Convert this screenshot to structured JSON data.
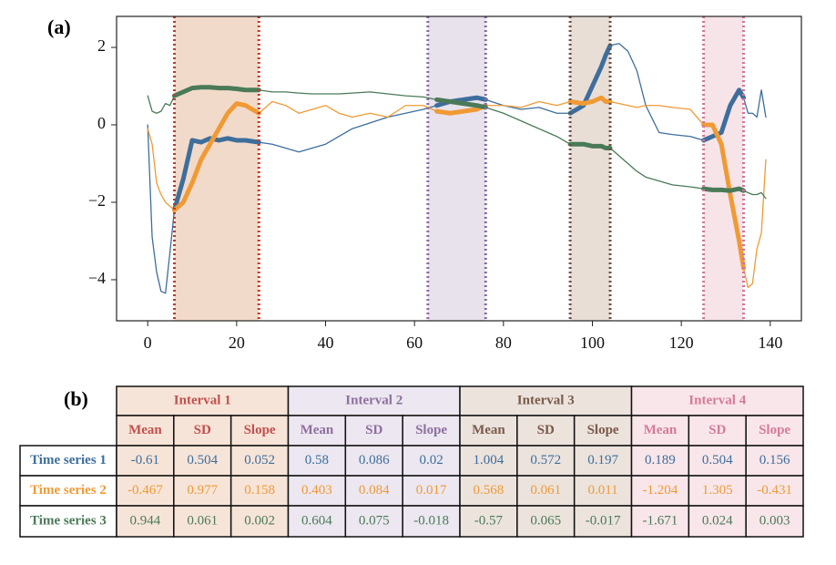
{
  "chart_data": {
    "type": "line",
    "panel_label": "(a)",
    "x": [
      0,
      1,
      2,
      3,
      4,
      5,
      6,
      8,
      10,
      12,
      14,
      16,
      18,
      20,
      22,
      25,
      28,
      31,
      34,
      37,
      40,
      43,
      46,
      50,
      54,
      58,
      62,
      65,
      68,
      71,
      74,
      76,
      80,
      84,
      88,
      92,
      95,
      98,
      100,
      102,
      103,
      104,
      106,
      108,
      110,
      112,
      115,
      118,
      122,
      125,
      127,
      129,
      131,
      133,
      134,
      135,
      136,
      137,
      138,
      139
    ],
    "series": [
      {
        "name": "Time series 1",
        "color": "#3d6e9c",
        "values": [
          0,
          -2.9,
          -3.8,
          -4.3,
          -4.35,
          -3.3,
          -2.2,
          -1.4,
          -0.4,
          -0.45,
          -0.35,
          -0.4,
          -0.35,
          -0.4,
          -0.4,
          -0.45,
          -0.5,
          -0.6,
          -0.7,
          -0.6,
          -0.5,
          -0.3,
          -0.1,
          0.05,
          0.2,
          0.3,
          0.4,
          0.5,
          0.6,
          0.65,
          0.7,
          0.65,
          0.5,
          0.4,
          0.45,
          0.3,
          0.3,
          0.5,
          1.0,
          1.5,
          1.8,
          2.05,
          2.1,
          1.9,
          1.4,
          0.5,
          -0.2,
          -0.25,
          -0.3,
          -0.4,
          -0.3,
          -0.2,
          0.5,
          0.9,
          0.7,
          0.3,
          0.3,
          0.2,
          0.9,
          0.2
        ]
      },
      {
        "name": "Time series 2",
        "color": "#f09a35",
        "values": [
          -0.1,
          -0.5,
          -1.5,
          -1.8,
          -2.0,
          -2.1,
          -2.2,
          -2.0,
          -1.5,
          -0.9,
          -0.5,
          -0.1,
          0.3,
          0.55,
          0.5,
          0.3,
          0.6,
          0.5,
          0.3,
          0.4,
          0.5,
          0.3,
          0.2,
          0.3,
          0.2,
          0.5,
          0.5,
          0.35,
          0.3,
          0.35,
          0.4,
          0.5,
          0.5,
          0.45,
          0.6,
          0.5,
          0.6,
          0.55,
          0.6,
          0.7,
          0.6,
          0.6,
          0.55,
          0.5,
          0.45,
          0.5,
          0.5,
          0.45,
          0.4,
          0.0,
          0.0,
          -0.5,
          -1.8,
          -3.0,
          -3.7,
          -4.2,
          -4.1,
          -3.2,
          -2.8,
          -0.9
        ]
      },
      {
        "name": "Time series 3",
        "color": "#4a7a58",
        "values": [
          0.75,
          0.35,
          0.3,
          0.35,
          0.55,
          0.5,
          0.75,
          0.85,
          0.95,
          0.97,
          0.97,
          0.95,
          0.95,
          0.93,
          0.9,
          0.9,
          0.85,
          0.85,
          0.82,
          0.8,
          0.8,
          0.8,
          0.82,
          0.85,
          0.8,
          0.75,
          0.72,
          0.65,
          0.6,
          0.55,
          0.5,
          0.45,
          0.3,
          0.1,
          -0.1,
          -0.3,
          -0.5,
          -0.5,
          -0.55,
          -0.55,
          -0.6,
          -0.6,
          -0.8,
          -1.0,
          -1.2,
          -1.35,
          -1.45,
          -1.55,
          -1.6,
          -1.65,
          -1.68,
          -1.68,
          -1.7,
          -1.65,
          -1.7,
          -1.75,
          -1.8,
          -1.8,
          -1.75,
          -1.9
        ]
      }
    ],
    "intervals": [
      {
        "start": 6,
        "end": 25,
        "color": "#c0392b",
        "fill": "#f1d6c4"
      },
      {
        "start": 63,
        "end": 76,
        "color": "#8b6a9c",
        "fill": "#e6dfea"
      },
      {
        "start": 95,
        "end": 104,
        "color": "#6e5040",
        "fill": "#e6dad2"
      },
      {
        "start": 125,
        "end": 134,
        "color": "#d0759a",
        "fill": "#f6e1e6"
      }
    ],
    "xlim": [
      -7,
      147
    ],
    "ylim": [
      -5.06,
      2.8
    ],
    "xticks": [
      0,
      20,
      40,
      60,
      80,
      100,
      120,
      140
    ],
    "yticks": [
      {
        "value": -4,
        "label": "−4"
      },
      {
        "value": -2,
        "label": "−2"
      },
      0,
      2
    ],
    "grid": false
  },
  "table": {
    "panel_label": "(b)",
    "intervals": [
      {
        "name": "Interval 1",
        "color": "#c0504d",
        "fill": "#f7e4d8"
      },
      {
        "name": "Interval 2",
        "color": "#8e6fa0",
        "fill": "#ece7f0"
      },
      {
        "name": "Interval 3",
        "color": "#7a5a4a",
        "fill": "#ece3dd"
      },
      {
        "name": "Interval 4",
        "color": "#d67a9a",
        "fill": "#f8e6ea"
      }
    ],
    "columns": [
      "Mean",
      "SD",
      "Slope"
    ],
    "rows": [
      {
        "name": "Time series 1",
        "color": "#3d6e9c",
        "cells": [
          -0.61,
          0.504,
          0.052,
          0.58,
          0.086,
          0.02,
          1.004,
          0.572,
          0.197,
          0.189,
          0.504,
          0.156
        ]
      },
      {
        "name": "Time series 2",
        "color": "#f09a35",
        "cells": [
          -0.467,
          0.977,
          0.158,
          0.403,
          0.084,
          0.017,
          0.568,
          0.061,
          0.011,
          -1.204,
          1.305,
          -0.431
        ]
      },
      {
        "name": "Time series 3",
        "color": "#4a7a58",
        "cells": [
          0.944,
          0.061,
          0.002,
          0.604,
          0.075,
          -0.018,
          -0.57,
          0.065,
          -0.017,
          -1.671,
          0.024,
          0.003
        ]
      }
    ]
  }
}
